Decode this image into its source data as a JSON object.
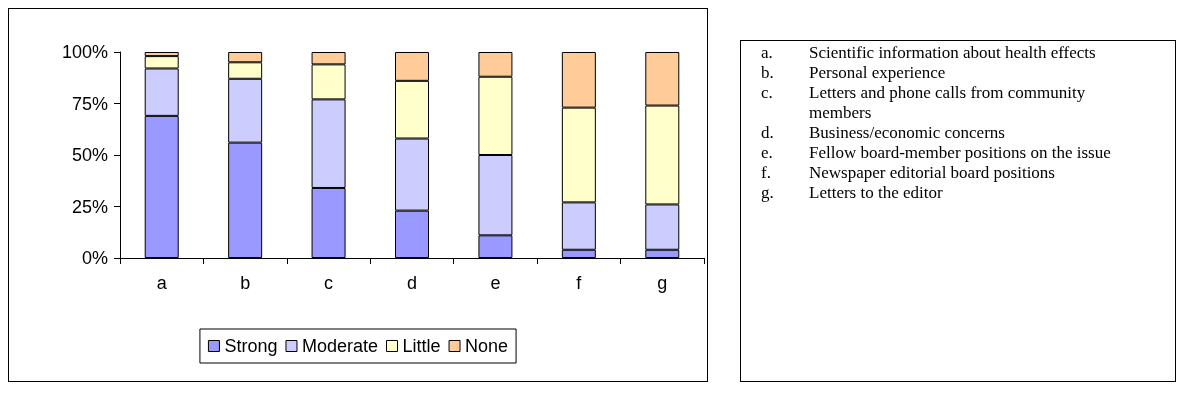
{
  "chart_data": {
    "type": "bar",
    "stacked": true,
    "categories": [
      "a",
      "b",
      "c",
      "d",
      "e",
      "f",
      "g"
    ],
    "series": [
      {
        "name": "Strong",
        "color": "#9999ff",
        "values": [
          69,
          56,
          34,
          23,
          11,
          4,
          4
        ]
      },
      {
        "name": "Moderate",
        "color": "#ccccff",
        "values": [
          23,
          31,
          43,
          35,
          39,
          23,
          22
        ]
      },
      {
        "name": "Little",
        "color": "#ffffcc",
        "values": [
          6,
          8,
          17,
          28,
          38,
          46,
          48
        ]
      },
      {
        "name": "None",
        "color": "#ffcc99",
        "values": [
          2,
          5,
          6,
          14,
          12,
          27,
          26
        ]
      }
    ],
    "ylim": [
      0,
      100
    ],
    "yticks": [
      {
        "value": 0,
        "label": "0%"
      },
      {
        "value": 25,
        "label": "25%"
      },
      {
        "value": 50,
        "label": "50%"
      },
      {
        "value": 75,
        "label": "75%"
      },
      {
        "value": 100,
        "label": "100%"
      }
    ],
    "grid": false,
    "legend": "bottom",
    "annotations": [
      "a. Scientific information about health effects",
      "b. Personal experience",
      "c. Letters and phone calls from community members",
      "d. Business/economic concerns",
      "e. Fellow board-member positions on the issue",
      "f. Newspaper editorial board positions",
      "g. Letters to the editor"
    ]
  }
}
